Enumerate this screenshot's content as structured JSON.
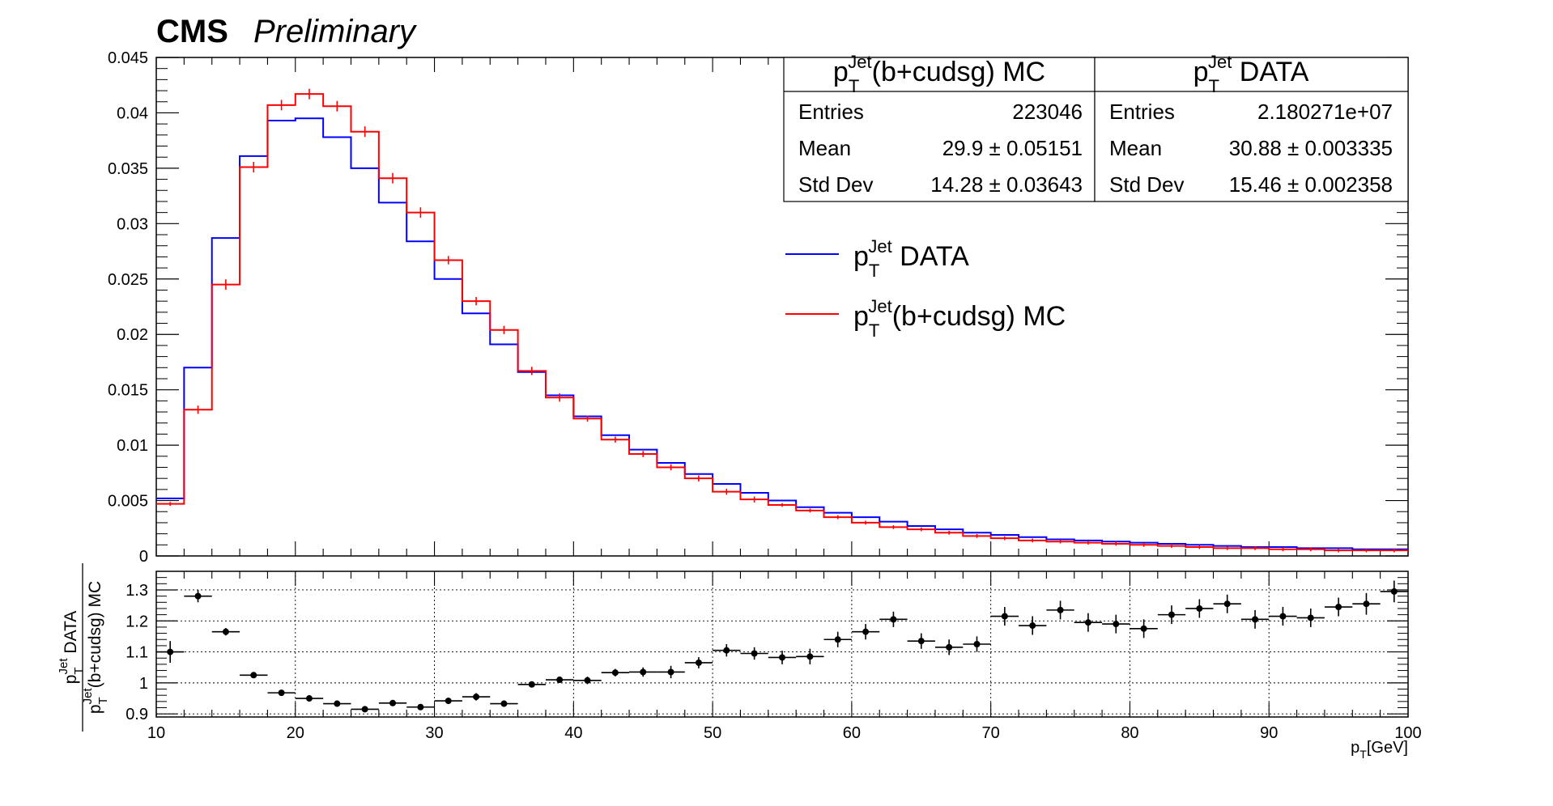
{
  "header": {
    "experiment": "CMS",
    "status": "Preliminary"
  },
  "colors": {
    "data": "#0000ff",
    "mc": "#ff0000",
    "ratio": "#000000"
  },
  "chart_data": [
    {
      "type": "histogram",
      "xlim": [
        10,
        100
      ],
      "ylim": [
        0,
        0.045
      ],
      "y_tick_labels": [
        "0",
        "0.005",
        "0.01",
        "0.015",
        "0.02",
        "0.025",
        "0.03",
        "0.035",
        "0.04",
        "0.045"
      ],
      "bin_edges": [
        10,
        12,
        14,
        16,
        18,
        20,
        22,
        24,
        26,
        28,
        30,
        32,
        34,
        36,
        38,
        40,
        42,
        44,
        46,
        48,
        50,
        52,
        54,
        56,
        58,
        60,
        62,
        64,
        66,
        68,
        70,
        72,
        74,
        76,
        78,
        80,
        82,
        84,
        86,
        88,
        90,
        92,
        94,
        96,
        98,
        100
      ],
      "legend": {
        "placement": "top-right",
        "entries": [
          {
            "base": "p",
            "sub": "T",
            "sup": "Jet",
            "rest": " DATA",
            "series": 0
          },
          {
            "base": "p",
            "sub": "T",
            "sup": "Jet",
            "rest": "(b+cudsg) MC",
            "series": 1
          }
        ]
      },
      "stat_boxes": [
        {
          "title": {
            "base": "p",
            "sub": "T",
            "sup": "Jet",
            "rest": "(b+cudsg) MC"
          },
          "rows": [
            {
              "label": "Entries",
              "value": "223046"
            },
            {
              "label": "Mean",
              "value": "29.9 ± 0.05151"
            },
            {
              "label": "Std Dev",
              "value": "14.28 ± 0.03643"
            }
          ]
        },
        {
          "title": {
            "base": "p",
            "sub": "T",
            "sup": "Jet",
            "rest": " DATA"
          },
          "rows": [
            {
              "label": "Entries",
              "value": "2.180271e+07"
            },
            {
              "label": "Mean",
              "value": "30.88 ± 0.003335"
            },
            {
              "label": "Std Dev",
              "value": "15.46 ± 0.002358"
            }
          ]
        }
      ],
      "series": [
        {
          "color": "#0000ff",
          "draw": "step",
          "values": [
            0.0052,
            0.017,
            0.0287,
            0.0361,
            0.0393,
            0.0395,
            0.0378,
            0.035,
            0.0319,
            0.0284,
            0.025,
            0.0219,
            0.0191,
            0.0166,
            0.0145,
            0.0126,
            0.0109,
            0.0096,
            0.0084,
            0.0074,
            0.0065,
            0.0057,
            0.005,
            0.0044,
            0.0039,
            0.0035,
            0.0031,
            0.0027,
            0.0024,
            0.0021,
            0.0019,
            0.0017,
            0.0015,
            0.0014,
            0.0013,
            0.0012,
            0.0011,
            0.001,
            0.0009,
            0.0008,
            0.0008,
            0.0007,
            0.0007,
            0.0006,
            0.0006
          ]
        },
        {
          "color": "#ff0000",
          "draw": "step+errors",
          "values": [
            0.0047,
            0.0132,
            0.0245,
            0.0351,
            0.0407,
            0.0417,
            0.0406,
            0.0383,
            0.0341,
            0.031,
            0.0267,
            0.023,
            0.0204,
            0.0167,
            0.0143,
            0.0124,
            0.0105,
            0.0092,
            0.008,
            0.007,
            0.0058,
            0.0051,
            0.0046,
            0.0041,
            0.0035,
            0.003,
            0.0026,
            0.0024,
            0.0021,
            0.0018,
            0.0016,
            0.0014,
            0.0013,
            0.0012,
            0.0011,
            0.001,
            0.0009,
            0.0008,
            0.0007,
            0.0007,
            0.0006,
            0.0006,
            0.0005,
            0.0005,
            0.0005
          ],
          "errors": [
            0.0001,
            0.0003,
            0.0004,
            0.0004,
            0.0004,
            0.0004,
            0.0004,
            0.0004,
            0.0004,
            0.0004,
            0.0003,
            0.0003,
            0.0003,
            0.0003,
            0.0003,
            0.0002,
            0.0002,
            0.0002,
            0.0002,
            0.0002,
            0.0002,
            0.0002,
            0.0001,
            0.0001,
            0.0001,
            0.0001,
            0.0001,
            0.0001,
            0.0001,
            0.0001,
            0.0001,
            0.0001,
            0.0001,
            0.0001,
            0.0001,
            0.0001,
            0.0001,
            0.0001,
            0.0001,
            0.0001,
            0.0001,
            0.0001,
            0.0001,
            0.0001,
            0.0001
          ]
        }
      ]
    },
    {
      "type": "scatter",
      "xlim": [
        10,
        100
      ],
      "ylim": [
        0.89,
        1.36
      ],
      "grid": true,
      "x_tick_labels": [
        "10",
        "20",
        "30",
        "40",
        "50",
        "60",
        "70",
        "80",
        "90",
        "100"
      ],
      "y_tick_labels": [
        "0.9",
        "1",
        "1.1",
        "1.2",
        "1.3"
      ],
      "xlabel": {
        "base": "p",
        "sub": "T",
        "rest": "[GeV]"
      },
      "ylabel": {
        "numerator": {
          "base": "p",
          "sub": "T",
          "sup": "Jet",
          "rest": " DATA"
        },
        "denominator": {
          "base": "p",
          "sub": "T",
          "sup": "Jet",
          "rest": "(b+cudsg) MC"
        }
      },
      "series": [
        {
          "color": "#000000",
          "x": [
            11,
            13,
            15,
            17,
            19,
            21,
            23,
            25,
            27,
            29,
            31,
            33,
            35,
            37,
            39,
            41,
            43,
            45,
            47,
            49,
            51,
            53,
            55,
            57,
            59,
            61,
            63,
            65,
            67,
            69,
            71,
            73,
            75,
            77,
            79,
            81,
            83,
            85,
            87,
            89,
            91,
            93,
            95,
            97,
            99
          ],
          "y": [
            1.1,
            1.28,
            1.165,
            1.025,
            0.968,
            0.95,
            0.933,
            0.915,
            0.935,
            0.922,
            0.942,
            0.955,
            0.933,
            0.995,
            1.01,
            1.008,
            1.033,
            1.035,
            1.035,
            1.065,
            1.105,
            1.095,
            1.082,
            1.085,
            1.14,
            1.165,
            1.205,
            1.135,
            1.115,
            1.125,
            1.215,
            1.185,
            1.235,
            1.195,
            1.19,
            1.175,
            1.22,
            1.24,
            1.255,
            1.205,
            1.215,
            1.21,
            1.245,
            1.255,
            1.295
          ],
          "yerr": [
            0.035,
            0.02,
            0.012,
            0.008,
            0.006,
            0.006,
            0.006,
            0.006,
            0.008,
            0.01,
            0.01,
            0.012,
            0.01,
            0.008,
            0.01,
            0.012,
            0.012,
            0.015,
            0.02,
            0.018,
            0.02,
            0.02,
            0.022,
            0.025,
            0.025,
            0.025,
            0.025,
            0.025,
            0.025,
            0.025,
            0.03,
            0.03,
            0.03,
            0.03,
            0.03,
            0.03,
            0.03,
            0.03,
            0.03,
            0.03,
            0.03,
            0.03,
            0.03,
            0.035,
            0.035
          ]
        }
      ]
    }
  ]
}
